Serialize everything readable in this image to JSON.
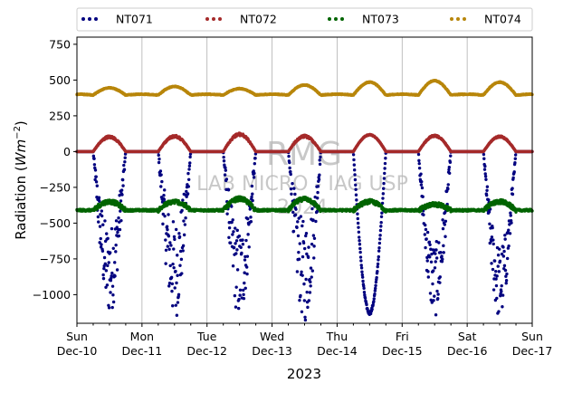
{
  "chart_data": {
    "type": "scatter",
    "title": "",
    "xlabel": "2023",
    "ylabel_main": "Radiation (",
    "ylabel_unit": "Wm",
    "ylabel_exp": "−2",
    "ylabel_close": ")",
    "xlim_days": [
      0,
      7
    ],
    "ylim": [
      -1200,
      800
    ],
    "yticks": [
      750,
      500,
      250,
      0,
      -250,
      -500,
      -750,
      -1000
    ],
    "ytick_labels": [
      "750",
      "500",
      "250",
      "0",
      "−250",
      "−500",
      "−750",
      "−1000"
    ],
    "xticks": [
      {
        "day": 0,
        "line1": "Sun",
        "line2": "Dec-10"
      },
      {
        "day": 1,
        "line1": "Mon",
        "line2": "Dec-11"
      },
      {
        "day": 2,
        "line1": "Tue",
        "line2": "Dec-12"
      },
      {
        "day": 3,
        "line1": "Wed",
        "line2": "Dec-13"
      },
      {
        "day": 4,
        "line1": "Thu",
        "line2": "Dec-14"
      },
      {
        "day": 5,
        "line1": "Fri",
        "line2": "Dec-15"
      },
      {
        "day": 6,
        "line1": "Sat",
        "line2": "Dec-16"
      },
      {
        "day": 7,
        "line1": "Sun",
        "line2": "Dec-17"
      }
    ],
    "grid": "vertical",
    "legend_position": "top",
    "watermark": [
      "RMG",
      "LAB MICRO - IAG USP",
      "2024"
    ],
    "series": [
      {
        "name": "NT071",
        "color": "#00007f",
        "baseline": 0,
        "day_amplitude": [
          -1150,
          -1180,
          -1180,
          -1200,
          -1140,
          -1160,
          -1180
        ],
        "scatter": [
          0.55,
          0.6,
          0.55,
          0.6,
          0.02,
          0.45,
          0.45
        ]
      },
      {
        "name": "NT072",
        "color": "#a52a2a",
        "baseline": 0,
        "day_amplitude": [
          110,
          115,
          130,
          115,
          120,
          115,
          110
        ],
        "scatter": [
          0.15,
          0.15,
          0.15,
          0.15,
          0.05,
          0.1,
          0.1
        ]
      },
      {
        "name": "NT073",
        "color": "#006400",
        "baseline": -410,
        "day_amplitude": [
          60,
          60,
          80,
          80,
          60,
          40,
          60
        ],
        "scatter": [
          0.4,
          0.4,
          0.4,
          0.4,
          0.3,
          0.3,
          0.3
        ]
      },
      {
        "name": "NT074",
        "color": "#b8860b",
        "baseline": 395,
        "day_amplitude": [
          50,
          60,
          45,
          70,
          90,
          100,
          90
        ],
        "scatter": [
          0.05,
          0.05,
          0.05,
          0.05,
          0.05,
          0.05,
          0.05
        ]
      }
    ]
  }
}
